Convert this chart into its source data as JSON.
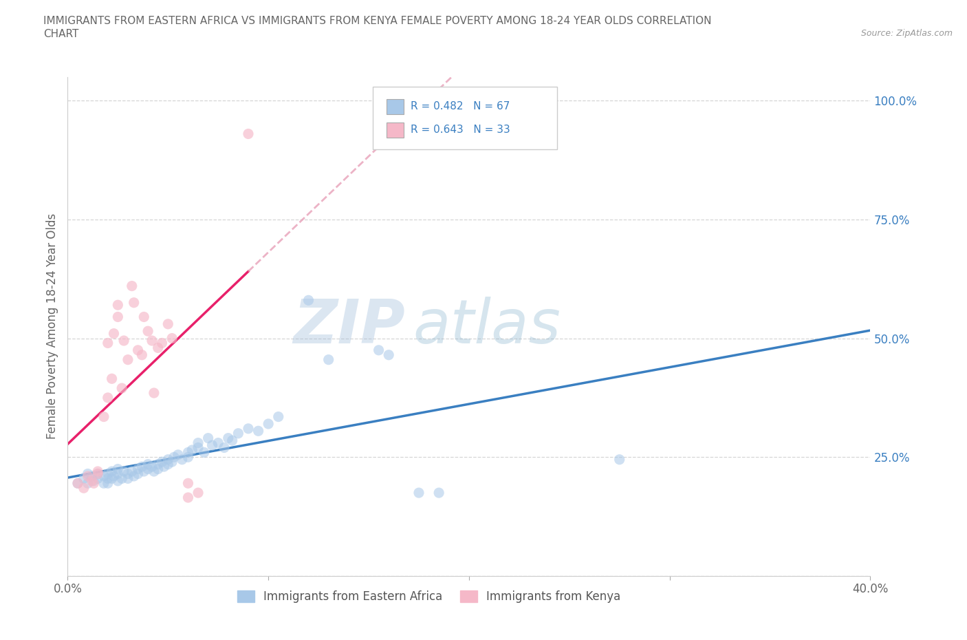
{
  "title_line1": "IMMIGRANTS FROM EASTERN AFRICA VS IMMIGRANTS FROM KENYA FEMALE POVERTY AMONG 18-24 YEAR OLDS CORRELATION",
  "title_line2": "CHART",
  "source": "Source: ZipAtlas.com",
  "ylabel": "Female Poverty Among 18-24 Year Olds",
  "xlim": [
    0.0,
    0.4
  ],
  "ylim": [
    0.0,
    1.05
  ],
  "xticks": [
    0.0,
    0.1,
    0.2,
    0.3,
    0.4
  ],
  "xticklabels": [
    "0.0%",
    "",
    "",
    "",
    "40.0%"
  ],
  "ytick_positions": [
    0.0,
    0.25,
    0.5,
    0.75,
    1.0
  ],
  "ytick_labels": [
    "",
    "25.0%",
    "50.0%",
    "75.0%",
    "100.0%"
  ],
  "watermark_zip": "ZIP",
  "watermark_atlas": "atlas",
  "blue_color": "#a8c8e8",
  "pink_color": "#f5b8c8",
  "blue_line_color": "#3a7fc1",
  "pink_line_color": "#e8206a",
  "pink_dash_color": "#e8a0b8",
  "r_blue": 0.482,
  "n_blue": 67,
  "r_pink": 0.643,
  "n_pink": 33,
  "legend_label_blue": "Immigrants from Eastern Africa",
  "legend_label_pink": "Immigrants from Kenya",
  "blue_points": [
    [
      0.005,
      0.195
    ],
    [
      0.008,
      0.205
    ],
    [
      0.01,
      0.215
    ],
    [
      0.01,
      0.195
    ],
    [
      0.012,
      0.21
    ],
    [
      0.013,
      0.2
    ],
    [
      0.015,
      0.205
    ],
    [
      0.015,
      0.215
    ],
    [
      0.018,
      0.195
    ],
    [
      0.018,
      0.21
    ],
    [
      0.02,
      0.205
    ],
    [
      0.02,
      0.215
    ],
    [
      0.02,
      0.195
    ],
    [
      0.022,
      0.205
    ],
    [
      0.022,
      0.22
    ],
    [
      0.023,
      0.21
    ],
    [
      0.025,
      0.215
    ],
    [
      0.025,
      0.2
    ],
    [
      0.025,
      0.225
    ],
    [
      0.027,
      0.205
    ],
    [
      0.028,
      0.22
    ],
    [
      0.03,
      0.215
    ],
    [
      0.03,
      0.205
    ],
    [
      0.032,
      0.22
    ],
    [
      0.033,
      0.21
    ],
    [
      0.035,
      0.225
    ],
    [
      0.035,
      0.215
    ],
    [
      0.037,
      0.23
    ],
    [
      0.038,
      0.22
    ],
    [
      0.04,
      0.235
    ],
    [
      0.04,
      0.225
    ],
    [
      0.042,
      0.23
    ],
    [
      0.043,
      0.22
    ],
    [
      0.045,
      0.235
    ],
    [
      0.045,
      0.225
    ],
    [
      0.047,
      0.24
    ],
    [
      0.048,
      0.23
    ],
    [
      0.05,
      0.245
    ],
    [
      0.05,
      0.235
    ],
    [
      0.052,
      0.24
    ],
    [
      0.053,
      0.25
    ],
    [
      0.055,
      0.255
    ],
    [
      0.057,
      0.245
    ],
    [
      0.06,
      0.26
    ],
    [
      0.06,
      0.25
    ],
    [
      0.062,
      0.265
    ],
    [
      0.065,
      0.27
    ],
    [
      0.065,
      0.28
    ],
    [
      0.068,
      0.26
    ],
    [
      0.07,
      0.29
    ],
    [
      0.072,
      0.275
    ],
    [
      0.075,
      0.28
    ],
    [
      0.078,
      0.27
    ],
    [
      0.08,
      0.29
    ],
    [
      0.082,
      0.285
    ],
    [
      0.085,
      0.3
    ],
    [
      0.09,
      0.31
    ],
    [
      0.095,
      0.305
    ],
    [
      0.1,
      0.32
    ],
    [
      0.105,
      0.335
    ],
    [
      0.12,
      0.58
    ],
    [
      0.13,
      0.455
    ],
    [
      0.155,
      0.475
    ],
    [
      0.16,
      0.465
    ],
    [
      0.175,
      0.175
    ],
    [
      0.185,
      0.175
    ],
    [
      0.275,
      0.245
    ]
  ],
  "pink_points": [
    [
      0.005,
      0.195
    ],
    [
      0.008,
      0.185
    ],
    [
      0.01,
      0.21
    ],
    [
      0.012,
      0.2
    ],
    [
      0.013,
      0.195
    ],
    [
      0.015,
      0.215
    ],
    [
      0.015,
      0.22
    ],
    [
      0.018,
      0.335
    ],
    [
      0.02,
      0.375
    ],
    [
      0.02,
      0.49
    ],
    [
      0.022,
      0.415
    ],
    [
      0.023,
      0.51
    ],
    [
      0.025,
      0.57
    ],
    [
      0.025,
      0.545
    ],
    [
      0.027,
      0.395
    ],
    [
      0.028,
      0.495
    ],
    [
      0.03,
      0.455
    ],
    [
      0.032,
      0.61
    ],
    [
      0.033,
      0.575
    ],
    [
      0.035,
      0.475
    ],
    [
      0.037,
      0.465
    ],
    [
      0.038,
      0.545
    ],
    [
      0.04,
      0.515
    ],
    [
      0.042,
      0.495
    ],
    [
      0.043,
      0.385
    ],
    [
      0.045,
      0.48
    ],
    [
      0.047,
      0.49
    ],
    [
      0.05,
      0.53
    ],
    [
      0.052,
      0.5
    ],
    [
      0.06,
      0.195
    ],
    [
      0.06,
      0.165
    ],
    [
      0.065,
      0.175
    ],
    [
      0.09,
      0.93
    ]
  ]
}
